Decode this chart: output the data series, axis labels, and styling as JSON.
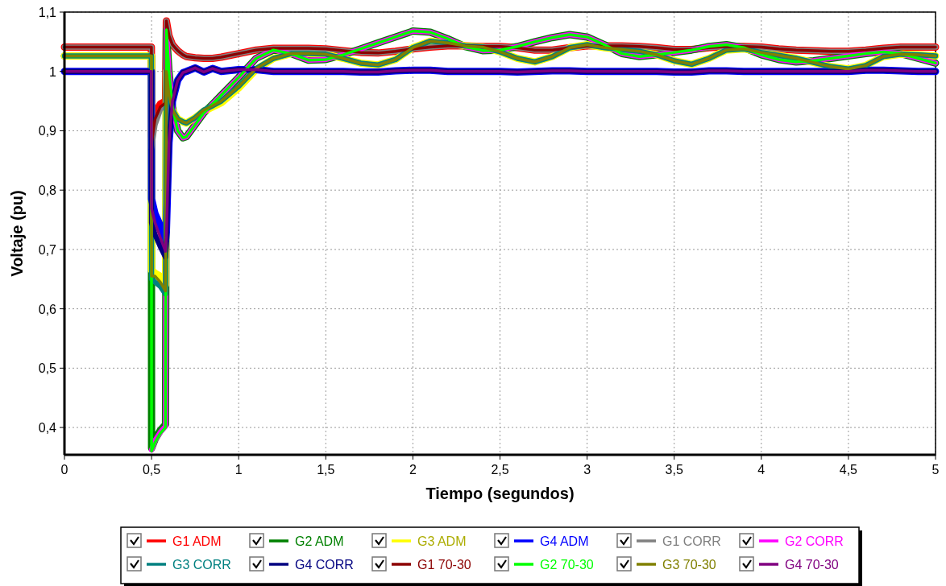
{
  "chart_data": {
    "type": "line",
    "xlabel": "Tiempo (segundos)",
    "ylabel": "Voltaje (pu)",
    "x": [
      0,
      0.499,
      0.5,
      0.52,
      0.55,
      0.58,
      0.585,
      0.6,
      0.62,
      0.65,
      0.68,
      0.7,
      0.75,
      0.8,
      0.85,
      0.9,
      1.0,
      1.1,
      1.2,
      1.3,
      1.4,
      1.5,
      1.6,
      1.7,
      1.8,
      1.9,
      2.0,
      2.1,
      2.2,
      2.3,
      2.4,
      2.5,
      2.6,
      2.7,
      2.8,
      2.9,
      3.0,
      3.1,
      3.2,
      3.3,
      3.4,
      3.5,
      3.6,
      3.7,
      3.8,
      3.9,
      4.0,
      4.1,
      4.2,
      4.3,
      4.4,
      4.5,
      4.6,
      4.7,
      4.8,
      4.9,
      5.0
    ],
    "xlim": [
      0,
      5
    ],
    "ylim": [
      0.354,
      1.1
    ],
    "xticks": [
      0,
      {
        "value": 0.5,
        "label": "0,5"
      },
      1,
      {
        "value": 1.5,
        "label": "1,5"
      },
      2,
      {
        "value": 2.5,
        "label": "2,5"
      },
      3,
      {
        "value": 3.5,
        "label": "3,5"
      },
      4,
      {
        "value": 4.5,
        "label": "4,5"
      },
      5
    ],
    "yticks": [
      {
        "value": 0.4,
        "label": "0,4"
      },
      {
        "value": 0.5,
        "label": "0,5"
      },
      {
        "value": 0.6,
        "label": "0,6"
      },
      {
        "value": 0.7,
        "label": "0,7"
      },
      {
        "value": 0.8,
        "label": "0,8"
      },
      {
        "value": 0.9,
        "label": "0,9"
      },
      1,
      {
        "value": 1.1,
        "label": "1,1"
      }
    ],
    "grid": true,
    "legend": "bottom",
    "marker": "none",
    "line_style": "solid",
    "series": [
      {
        "name": "G1 ADM",
        "color": "#ff0000",
        "values": [
          1.041,
          1.041,
          0.89,
          0.93,
          0.945,
          0.95,
          1.085,
          1.06,
          1.045,
          1.035,
          1.028,
          1.025,
          1.023,
          1.022,
          1.022,
          1.024,
          1.03,
          1.036,
          1.039,
          1.039,
          1.039,
          1.038,
          1.035,
          1.032,
          1.031,
          1.034,
          1.038,
          1.041,
          1.043,
          1.043,
          1.042,
          1.042,
          1.04,
          1.036,
          1.036,
          1.04,
          1.043,
          1.043,
          1.043,
          1.042,
          1.04,
          1.037,
          1.037,
          1.04,
          1.042,
          1.042,
          1.041,
          1.038,
          1.036,
          1.035,
          1.034,
          1.034,
          1.036,
          1.039,
          1.041,
          1.041,
          1.041
        ]
      },
      {
        "name": "G2 ADM",
        "color": "#008000",
        "values": [
          1.026,
          1.026,
          0.365,
          0.38,
          0.395,
          0.405,
          1.07,
          1.0,
          0.94,
          0.9,
          0.888,
          0.89,
          0.91,
          0.93,
          0.945,
          0.96,
          0.99,
          1.022,
          1.036,
          1.03,
          1.019,
          1.02,
          1.028,
          1.038,
          1.048,
          1.058,
          1.068,
          1.066,
          1.055,
          1.042,
          1.035,
          1.036,
          1.042,
          1.05,
          1.057,
          1.062,
          1.058,
          1.045,
          1.03,
          1.025,
          1.028,
          1.032,
          1.036,
          1.042,
          1.045,
          1.04,
          1.028,
          1.02,
          1.016,
          1.018,
          1.022,
          1.026,
          1.03,
          1.033,
          1.03,
          1.022,
          1.014
        ]
      },
      {
        "name": "G3 ADM",
        "color": "#ffff00",
        "values": [
          1.026,
          1.026,
          0.665,
          0.66,
          0.655,
          0.64,
          1.0,
          0.96,
          0.935,
          0.92,
          0.915,
          0.913,
          0.922,
          0.933,
          0.94,
          0.947,
          0.972,
          1.003,
          1.022,
          1.03,
          1.03,
          1.029,
          1.022,
          1.014,
          1.011,
          1.02,
          1.04,
          1.051,
          1.048,
          1.043,
          1.041,
          1.033,
          1.022,
          1.016,
          1.025,
          1.04,
          1.045,
          1.04,
          1.037,
          1.034,
          1.028,
          1.018,
          1.012,
          1.022,
          1.036,
          1.038,
          1.032,
          1.027,
          1.022,
          1.015,
          1.008,
          1.004,
          1.01,
          1.025,
          1.029,
          1.028,
          1.026
        ]
      },
      {
        "name": "G4 ADM",
        "color": "#0000ff",
        "values": [
          1.0,
          1.0,
          0.785,
          0.76,
          0.74,
          0.715,
          0.73,
          0.88,
          0.95,
          0.985,
          0.998,
          1.0,
          1.006,
          0.999,
          1.005,
          1.0,
          1.003,
          1.003,
          1.0,
          1.0,
          1.0,
          1.0,
          1.0,
          0.999,
          0.999,
          1.001,
          1.002,
          1.002,
          1.0,
          1.0,
          1.0,
          1.0,
          0.999,
          1.0,
          1.001,
          1.001,
          1.0,
          1.0,
          1.0,
          1.0,
          1.0,
          0.999,
          0.999,
          1.001,
          1.001,
          1.0,
          1.0,
          1.0,
          1.0,
          1.0,
          1.0,
          1.0,
          1.002,
          1.002,
          1.001,
          1.0,
          1.0
        ]
      },
      {
        "name": "G1 CORR",
        "color": "#808080",
        "values": [
          1.041,
          1.041,
          0.87,
          0.91,
          0.935,
          0.945,
          1.085,
          1.06,
          1.045,
          1.035,
          1.028,
          1.025,
          1.023,
          1.022,
          1.022,
          1.024,
          1.03,
          1.036,
          1.039,
          1.039,
          1.039,
          1.038,
          1.035,
          1.032,
          1.031,
          1.034,
          1.038,
          1.041,
          1.043,
          1.043,
          1.042,
          1.042,
          1.04,
          1.036,
          1.036,
          1.04,
          1.043,
          1.043,
          1.043,
          1.042,
          1.04,
          1.037,
          1.037,
          1.04,
          1.042,
          1.042,
          1.041,
          1.038,
          1.036,
          1.035,
          1.034,
          1.034,
          1.036,
          1.039,
          1.041,
          1.041,
          1.041
        ]
      },
      {
        "name": "G2 CORR",
        "color": "#ff00ff",
        "values": [
          null,
          null,
          0.362,
          0.378,
          0.392,
          0.402,
          1.07,
          1.0,
          0.94,
          0.9,
          0.888,
          0.89,
          0.91,
          0.93,
          0.945,
          0.96,
          0.99,
          1.022,
          1.036,
          1.03,
          1.019,
          1.02,
          1.028,
          1.038,
          1.048,
          1.058,
          1.068,
          1.066,
          1.055,
          1.042,
          1.035,
          1.036,
          1.042,
          1.05,
          1.057,
          1.062,
          1.058,
          1.045,
          1.03,
          1.025,
          1.028,
          1.032,
          1.036,
          1.042,
          1.045,
          1.04,
          1.028,
          1.02,
          1.016,
          1.018,
          1.022,
          1.026,
          1.03,
          1.033,
          1.03,
          1.022,
          1.014
        ]
      },
      {
        "name": "G3 CORR",
        "color": "#008080",
        "values": [
          1.026,
          1.026,
          0.65,
          0.645,
          0.638,
          0.625,
          1.0,
          0.96,
          0.935,
          0.92,
          0.915,
          0.913,
          0.922,
          0.935,
          0.942,
          0.95,
          0.975,
          1.005,
          1.022,
          1.03,
          1.03,
          1.029,
          1.022,
          1.014,
          1.011,
          1.02,
          1.04,
          1.051,
          1.048,
          1.043,
          1.041,
          1.033,
          1.022,
          1.016,
          1.025,
          1.04,
          1.045,
          1.04,
          1.037,
          1.034,
          1.028,
          1.018,
          1.012,
          1.022,
          1.036,
          1.038,
          1.032,
          1.027,
          1.022,
          1.015,
          1.008,
          1.004,
          1.01,
          1.025,
          1.029,
          1.028,
          1.026
        ]
      },
      {
        "name": "G4 CORR",
        "color": "#000080",
        "values": [
          1.0,
          1.0,
          0.745,
          0.725,
          0.705,
          0.687,
          0.71,
          0.88,
          0.95,
          0.985,
          0.998,
          1.0,
          1.006,
          0.999,
          1.005,
          1.0,
          1.003,
          1.003,
          1.0,
          1.0,
          1.0,
          1.0,
          1.0,
          0.999,
          0.999,
          1.001,
          1.002,
          1.002,
          1.0,
          1.0,
          1.0,
          1.0,
          0.999,
          1.0,
          1.001,
          1.001,
          1.0,
          1.0,
          1.0,
          1.0,
          1.0,
          0.999,
          0.999,
          1.001,
          1.001,
          1.0,
          1.0,
          1.0,
          1.0,
          1.0,
          1.0,
          1.0,
          1.002,
          1.002,
          1.001,
          1.0,
          1.0
        ]
      },
      {
        "name": "G1 70-30",
        "color": "#8b0000",
        "values": [
          1.041,
          1.041,
          0.88,
          0.92,
          0.94,
          0.947,
          1.085,
          1.06,
          1.045,
          1.035,
          1.028,
          1.025,
          1.023,
          1.022,
          1.022,
          1.024,
          1.03,
          1.036,
          1.039,
          1.039,
          1.039,
          1.038,
          1.035,
          1.032,
          1.031,
          1.034,
          1.038,
          1.041,
          1.043,
          1.043,
          1.042,
          1.042,
          1.04,
          1.036,
          1.036,
          1.04,
          1.043,
          1.043,
          1.043,
          1.042,
          1.04,
          1.037,
          1.037,
          1.04,
          1.042,
          1.042,
          1.041,
          1.038,
          1.036,
          1.035,
          1.034,
          1.034,
          1.036,
          1.039,
          1.041,
          1.041,
          1.041
        ]
      },
      {
        "name": "G2 70-30",
        "color": "#00ff00",
        "values": [
          1.026,
          1.026,
          0.36,
          0.375,
          0.39,
          0.4,
          1.07,
          1.0,
          0.94,
          0.9,
          0.888,
          0.89,
          0.91,
          0.93,
          0.945,
          0.96,
          0.99,
          1.022,
          1.036,
          1.03,
          1.019,
          1.02,
          1.028,
          1.038,
          1.048,
          1.058,
          1.068,
          1.066,
          1.055,
          1.042,
          1.035,
          1.036,
          1.042,
          1.05,
          1.057,
          1.062,
          1.058,
          1.045,
          1.03,
          1.025,
          1.028,
          1.032,
          1.036,
          1.042,
          1.045,
          1.04,
          1.028,
          1.02,
          1.016,
          1.018,
          1.022,
          1.026,
          1.03,
          1.033,
          1.03,
          1.022,
          1.014
        ]
      },
      {
        "name": "G3 70-30",
        "color": "#808000",
        "values": [
          1.026,
          1.026,
          0.655,
          0.655,
          0.645,
          0.63,
          1.0,
          0.96,
          0.935,
          0.92,
          0.915,
          0.913,
          0.922,
          0.935,
          0.942,
          0.95,
          0.975,
          1.005,
          1.022,
          1.03,
          1.03,
          1.029,
          1.022,
          1.014,
          1.011,
          1.02,
          1.04,
          1.051,
          1.048,
          1.043,
          1.041,
          1.033,
          1.022,
          1.016,
          1.025,
          1.04,
          1.045,
          1.04,
          1.037,
          1.034,
          1.028,
          1.018,
          1.012,
          1.022,
          1.036,
          1.038,
          1.032,
          1.027,
          1.022,
          1.015,
          1.008,
          1.004,
          1.01,
          1.025,
          1.029,
          1.028,
          1.026
        ]
      },
      {
        "name": "G4 70-30",
        "color": "#800080",
        "values": [
          1.0,
          1.0,
          0.769,
          0.745,
          0.72,
          0.697,
          0.72,
          0.88,
          0.95,
          0.985,
          0.998,
          1.0,
          1.006,
          0.999,
          1.005,
          1.0,
          1.003,
          1.003,
          1.0,
          1.0,
          1.0,
          1.0,
          1.0,
          0.999,
          0.999,
          1.001,
          1.002,
          1.002,
          1.0,
          1.0,
          1.0,
          1.0,
          0.999,
          1.0,
          1.001,
          1.001,
          1.0,
          1.0,
          1.0,
          1.0,
          1.0,
          0.999,
          0.999,
          1.001,
          1.001,
          1.0,
          1.0,
          1.0,
          1.0,
          1.0,
          1.0,
          1.0,
          1.002,
          1.002,
          1.001,
          1.0,
          1.0
        ]
      }
    ]
  }
}
